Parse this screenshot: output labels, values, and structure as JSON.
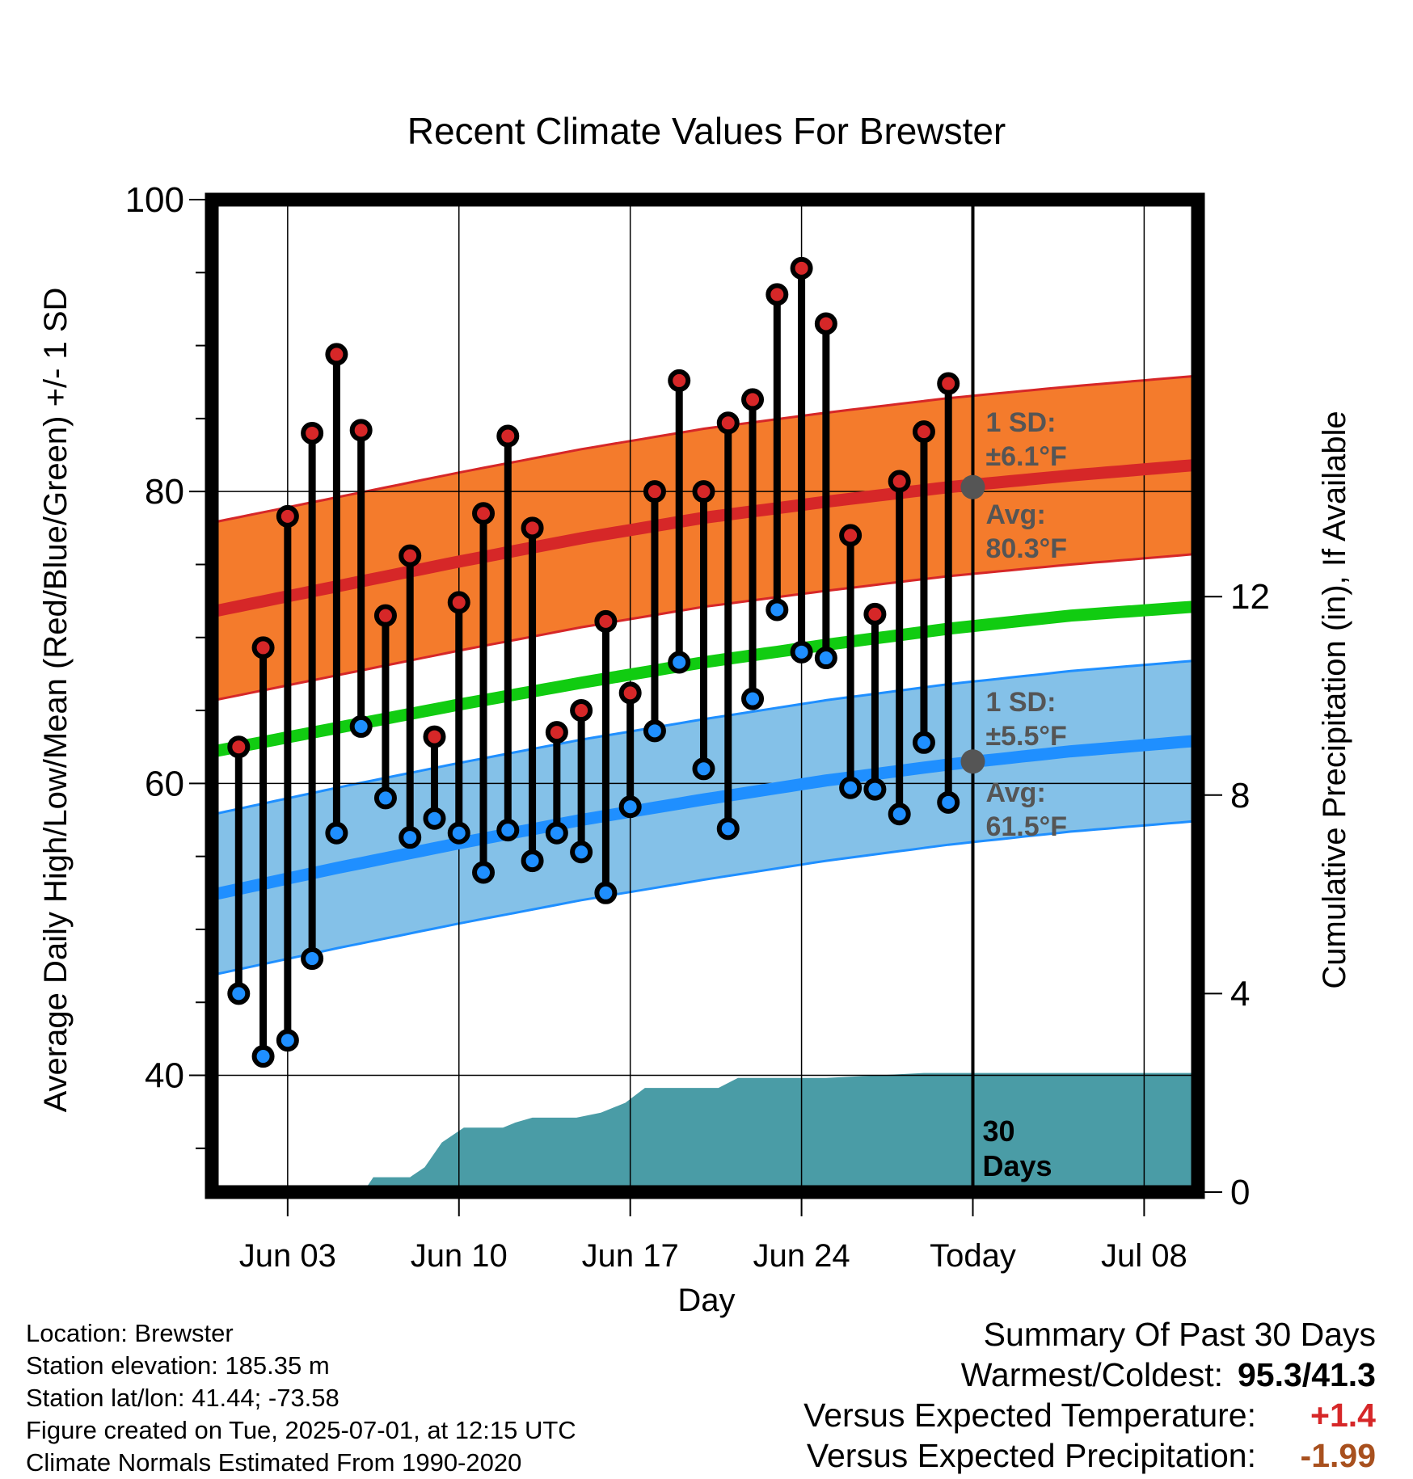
{
  "chart_data": {
    "type": "line",
    "title": "Recent Climate Values For Brewster",
    "xlabel": "Day",
    "ylabel": "Average Daily High/Low/Mean (Red/Blue/Green) +/- 1 SD",
    "y2label": "Cumulative Precipitation (in), If Available",
    "ylim": [
      32,
      100
    ],
    "y2lim": [
      0,
      20
    ],
    "xlim": [
      -0.1,
      40.2
    ],
    "yticks": [
      40,
      60,
      80,
      100
    ],
    "y2ticks": [
      0,
      4,
      8,
      12
    ],
    "xticks": [
      {
        "x": 3,
        "label": "Jun 03"
      },
      {
        "x": 10,
        "label": "Jun 10"
      },
      {
        "x": 17,
        "label": "Jun 17"
      },
      {
        "x": 24,
        "label": "Jun 24"
      },
      {
        "x": 31,
        "label": "Today"
      },
      {
        "x": 38,
        "label": "Jul 08"
      }
    ],
    "today_x": 31,
    "days": [
      1,
      2,
      3,
      4,
      5,
      6,
      7,
      8,
      9,
      10,
      11,
      12,
      13,
      14,
      15,
      16,
      17,
      18,
      19,
      20,
      21,
      22,
      23,
      24,
      25,
      26,
      27,
      28,
      29,
      30
    ],
    "daily_high": [
      62.5,
      69.3,
      78.3,
      84.0,
      89.4,
      84.2,
      71.5,
      75.6,
      63.2,
      72.4,
      78.5,
      83.8,
      77.5,
      63.5,
      65.0,
      71.1,
      66.2,
      80.0,
      87.6,
      80.0,
      84.7,
      86.3,
      93.5,
      95.3,
      91.5,
      77.0,
      71.6,
      80.7,
      84.1,
      87.4
    ],
    "daily_low": [
      45.6,
      41.3,
      42.4,
      48.0,
      56.6,
      63.9,
      59.0,
      56.3,
      57.6,
      56.6,
      53.9,
      56.8,
      54.7,
      56.6,
      55.3,
      52.5,
      58.4,
      63.6,
      68.3,
      61.0,
      56.9,
      65.8,
      71.9,
      69.0,
      68.6,
      59.7,
      59.6,
      57.9,
      62.8,
      58.7
    ],
    "avg_high_curve": {
      "x": [
        0,
        5,
        10,
        15,
        20,
        25,
        30,
        35,
        40
      ],
      "y": [
        71.8,
        73.5,
        75.2,
        76.8,
        78.2,
        79.3,
        80.3,
        81.1,
        81.8
      ]
    },
    "avg_mean_curve": {
      "x": [
        0,
        5,
        10,
        15,
        20,
        25,
        30,
        35,
        40
      ],
      "y": [
        62.2,
        63.8,
        65.4,
        66.9,
        68.3,
        69.5,
        70.6,
        71.5,
        72.1
      ]
    },
    "avg_low_curve": {
      "x": [
        0,
        5,
        10,
        15,
        20,
        25,
        30,
        35,
        40
      ],
      "y": [
        52.4,
        54.2,
        55.9,
        57.5,
        58.9,
        60.2,
        61.3,
        62.2,
        62.9
      ]
    },
    "high_sd": 6.1,
    "low_sd": 5.5,
    "cumulative_precip": {
      "x": [
        0,
        6,
        6.3,
        6.5,
        7.2,
        8.0,
        8.6,
        9.3,
        10.2,
        10.8,
        11.8,
        12.3,
        13.0,
        13.8,
        14.8,
        15.8,
        16.8,
        17.6,
        18.3,
        19.3,
        20.6,
        21.4,
        22.2,
        25.0,
        27.0,
        29.0,
        31,
        40.2
      ],
      "y": [
        0,
        0,
        0.15,
        0.3,
        0.3,
        0.3,
        0.5,
        1.0,
        1.3,
        1.3,
        1.3,
        1.4,
        1.5,
        1.5,
        1.5,
        1.6,
        1.8,
        2.1,
        2.1,
        2.1,
        2.1,
        2.3,
        2.3,
        2.3,
        2.35,
        2.4,
        2.4,
        2.4
      ]
    },
    "colors": {
      "high": "#d62728",
      "high_band": "#f47b2c",
      "mean": "#11cc11",
      "low": "#1f8fff",
      "low_band": "#84c1e8",
      "precip": "#4a9ca6",
      "annotation": "#555555"
    },
    "high_annotation": {
      "sd_label": "1 SD:",
      "sd_value": "±6.1°F",
      "avg_label": "Avg:",
      "avg_value": "80.3°F",
      "avg": 80.3
    },
    "low_annotation": {
      "sd_label": "1 SD:",
      "sd_value": "±5.5°F",
      "avg_label": "Avg:",
      "avg_value": "61.5°F",
      "avg": 61.5
    },
    "days_label": [
      "30",
      "Days"
    ]
  },
  "footer": {
    "location": "Location: Brewster",
    "elevation": "Station elevation: 185.35 m",
    "latlon": "Station lat/lon: 41.44; -73.58",
    "created": "Figure created on Tue, 2025-07-01, at 12:15 UTC",
    "normals": "Climate Normals Estimated From 1990-2020"
  },
  "summary": {
    "title": "Summary Of Past 30 Days",
    "warmest_label": "Warmest/Coldest:",
    "warmest_value": "95.3/41.3",
    "temp_label": "Versus Expected Temperature:",
    "temp_value": "+1.4",
    "precip_label": "Versus Expected Precipitation:",
    "precip_value": "-1.99"
  }
}
